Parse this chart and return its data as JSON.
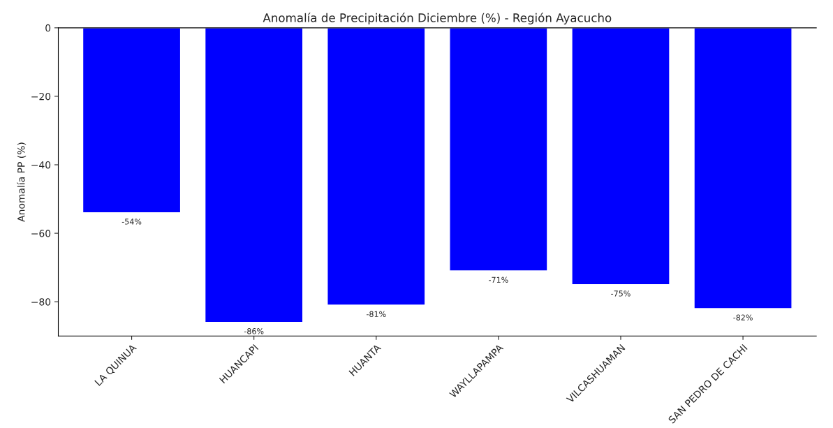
{
  "chart_data": {
    "type": "bar",
    "title": "Anomalía de Precipitación Diciembre (%) - Región Ayacucho",
    "ylabel": "Anomalía PP (%)",
    "categories": [
      "LA QUINUA",
      "HUANCAPI",
      "HUANTA",
      "WAYLLAPAMPA",
      "VILCASHUAMAN",
      "SAN PEDRO DE CACHI"
    ],
    "values": [
      -54,
      -86,
      -81,
      -71,
      -75,
      -82
    ],
    "value_labels": [
      "-54%",
      "-86%",
      "-81%",
      "-71%",
      "-75%",
      "-82%"
    ],
    "color": "#0000ff",
    "ylim": [
      -90,
      0
    ],
    "yticks": [
      0,
      -20,
      -40,
      -60,
      -80
    ],
    "grid": false,
    "legend": false
  }
}
